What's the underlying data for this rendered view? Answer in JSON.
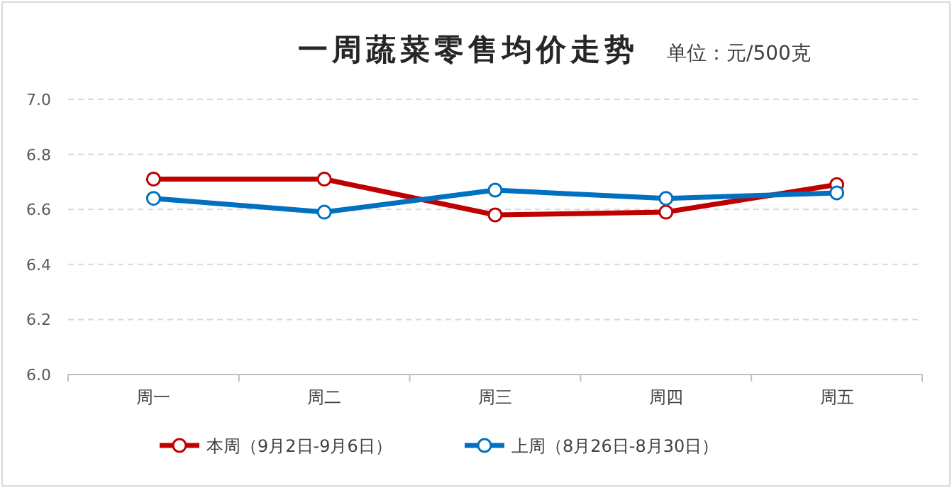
{
  "chart_data": {
    "type": "line",
    "title": "一周蔬菜零售均价走势",
    "subtitle": "单位：元/500克",
    "categories": [
      "周一",
      "周二",
      "周三",
      "周四",
      "周五"
    ],
    "series": [
      {
        "name": "本周（9月2日-9月6日）",
        "color": "#c00000",
        "values": [
          6.71,
          6.71,
          6.58,
          6.59,
          6.69
        ]
      },
      {
        "name": "上周（8月26日-8月30日）",
        "color": "#0070c0",
        "values": [
          6.64,
          6.59,
          6.67,
          6.64,
          6.66
        ]
      }
    ],
    "ylim": [
      6.0,
      7.0
    ],
    "yticks": [
      {
        "value": 6.0,
        "label": "6.0"
      },
      6.2,
      6.4,
      6.6,
      6.8,
      {
        "value": 7.0,
        "label": "7.0"
      }
    ],
    "grid": "y",
    "legend": "bottom",
    "marker": "circle",
    "line_style": "solid"
  }
}
